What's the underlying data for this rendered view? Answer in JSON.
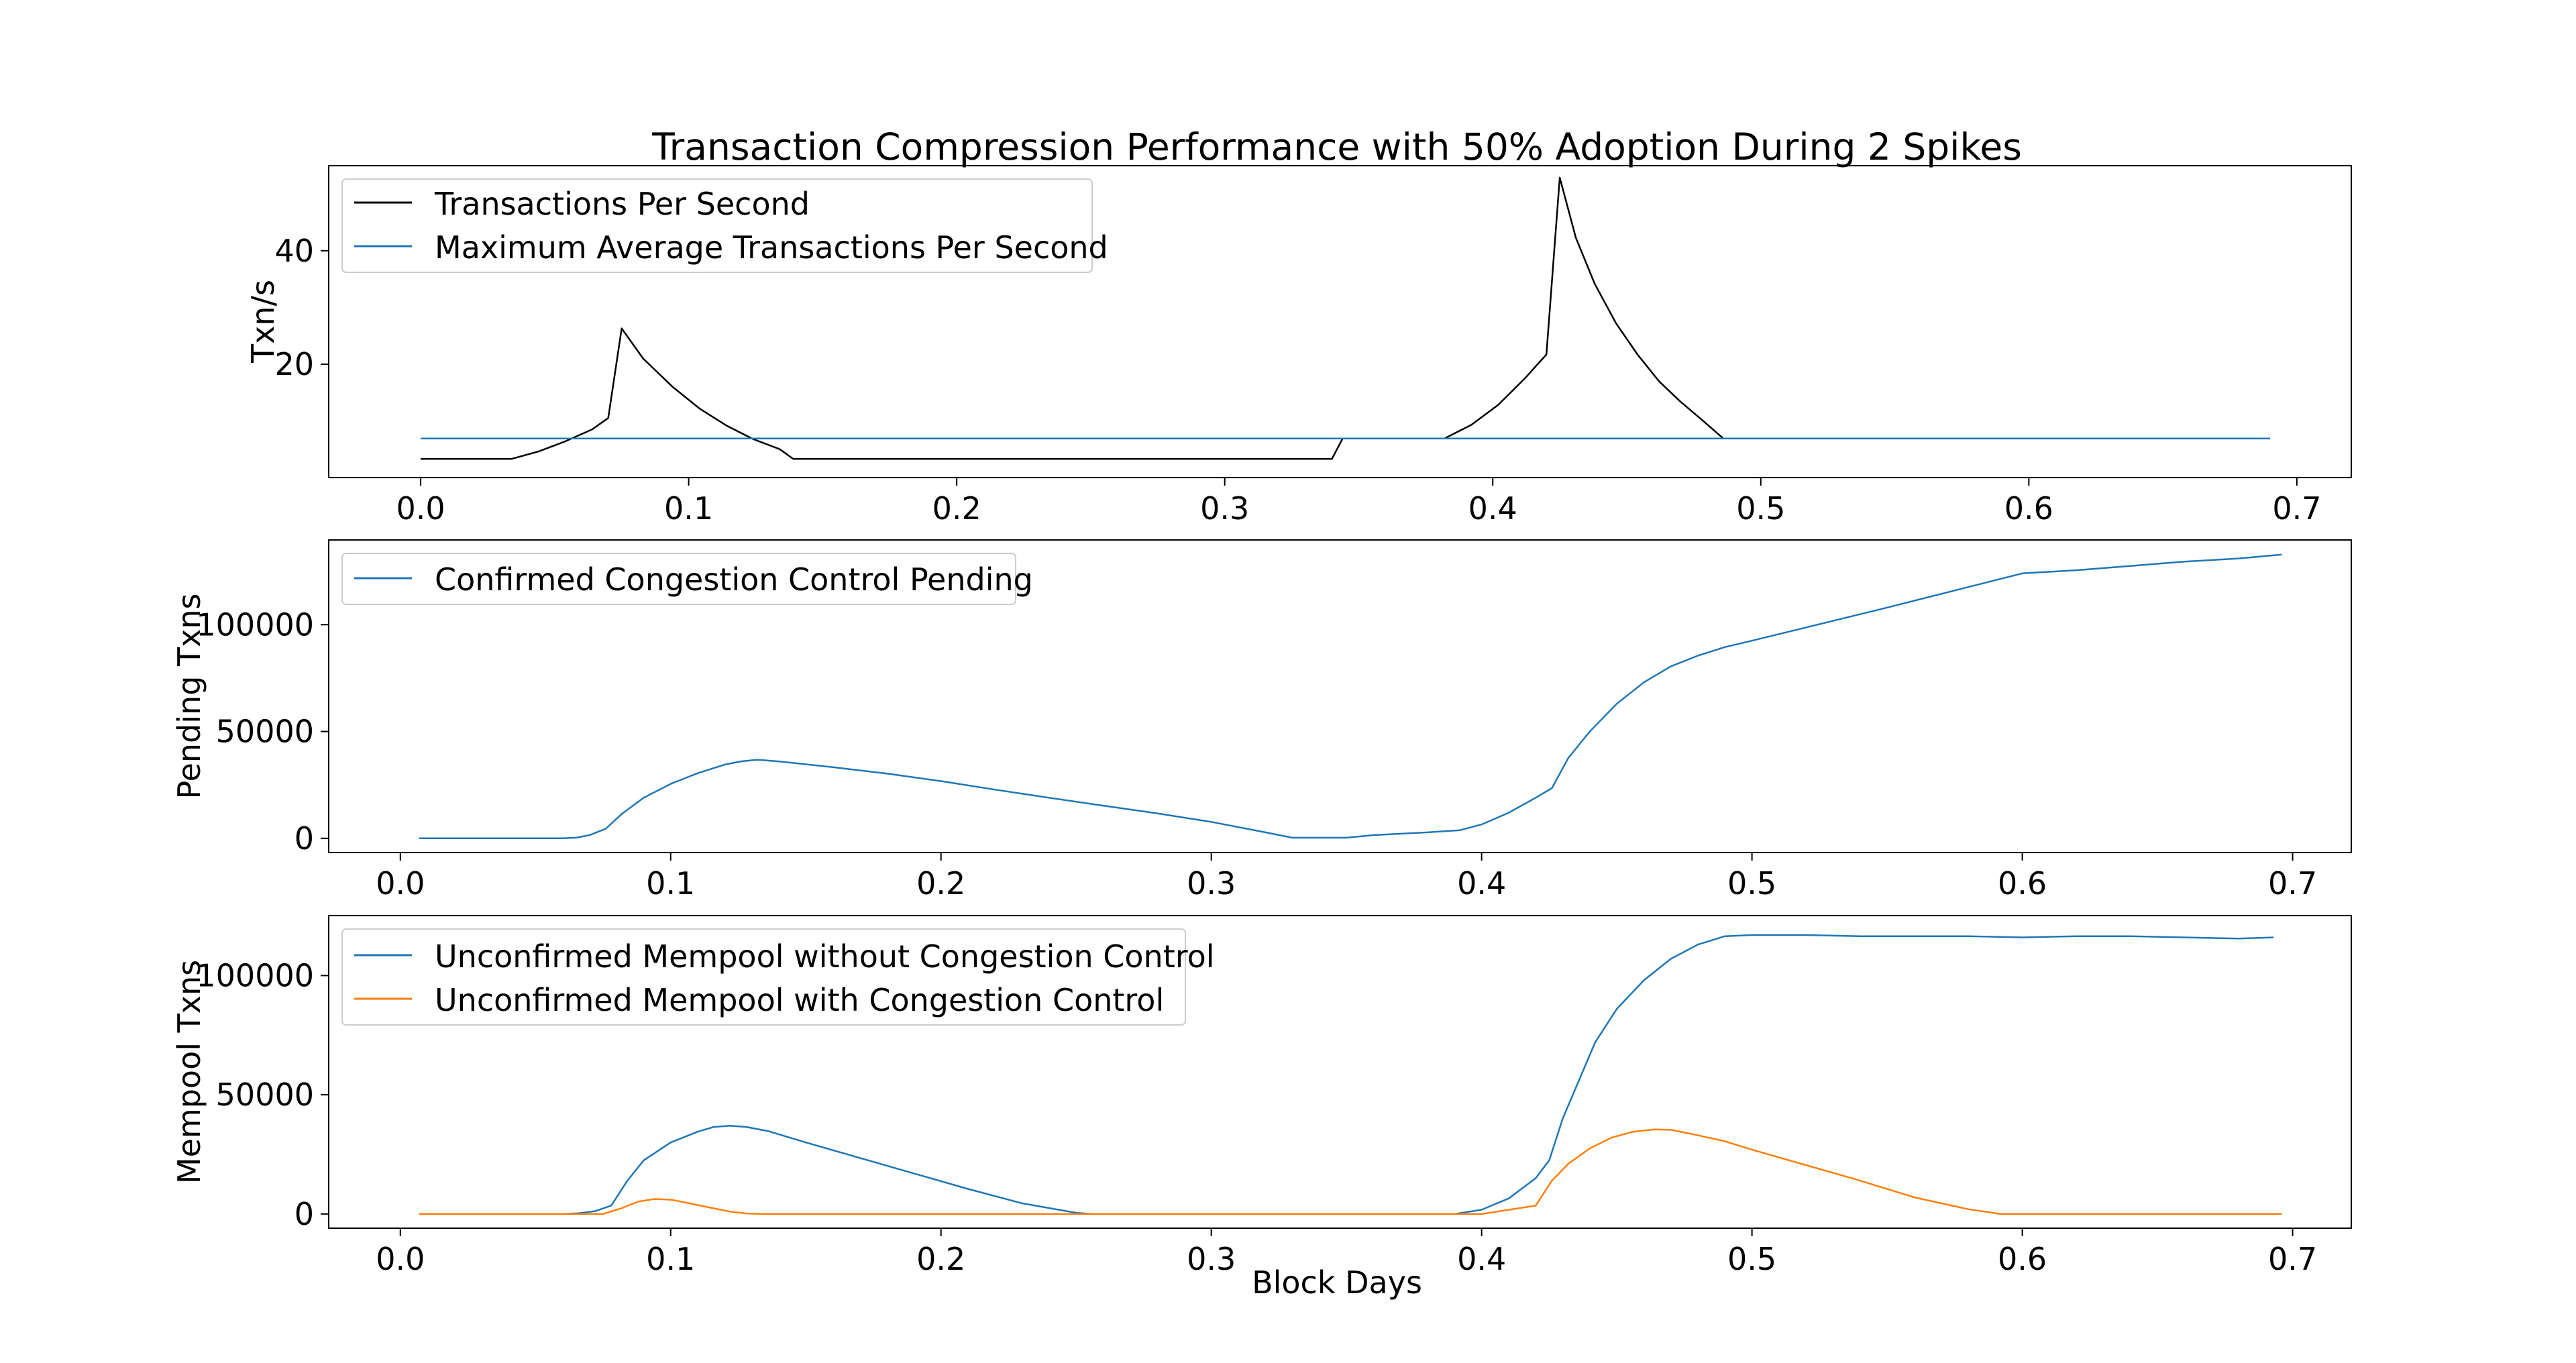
{
  "chart_data": [
    {
      "type": "line",
      "title": "Transaction Compression Performance with 50% Adoption During 2 Spikes",
      "xlabel": "",
      "ylabel": "Txn/s",
      "xlim": [
        -0.0343,
        0.7203
      ],
      "ylim": [
        0,
        55
      ],
      "xticks": [
        "0.0",
        "0.1",
        "0.2",
        "0.3",
        "0.4",
        "0.5",
        "0.6",
        "0.7"
      ],
      "xtick_values": [
        0.0,
        0.1,
        0.2,
        0.3,
        0.4,
        0.5,
        0.6,
        0.7
      ],
      "yticks": [
        "20",
        "40"
      ],
      "ytick_values": [
        20,
        40
      ],
      "grid": false,
      "legend_position": "upper-left",
      "series": [
        {
          "name": "Transactions Per Second",
          "color": "#000000",
          "x": [
            0.0,
            0.034,
            0.044,
            0.054,
            0.064,
            0.07,
            0.075,
            0.083,
            0.094,
            0.104,
            0.114,
            0.124,
            0.134,
            0.139,
            0.34,
            0.344,
            0.382,
            0.392,
            0.402,
            0.412,
            0.42,
            0.425,
            0.431,
            0.438,
            0.446,
            0.454,
            0.462,
            0.47,
            0.478,
            0.486,
            0.69
          ],
          "values": [
            3.3,
            3.3,
            4.6,
            6.4,
            8.5,
            10.5,
            26.3,
            21.0,
            16.0,
            12.2,
            9.2,
            6.8,
            5.0,
            3.3,
            3.3,
            6.9,
            6.9,
            9.3,
            12.8,
            17.5,
            21.7,
            52.9,
            42.3,
            34.2,
            27.2,
            21.7,
            17.0,
            13.4,
            10.2,
            6.9,
            6.9
          ]
        },
        {
          "name": "Maximum Average Transactions Per Second",
          "color": "#1f77b4",
          "x": [
            0.0,
            0.69
          ],
          "values": [
            6.9,
            6.9
          ]
        }
      ]
    },
    {
      "type": "line",
      "title": "",
      "xlabel": "",
      "ylabel": "Pending Txns",
      "xlim": [
        -0.0265,
        0.7217
      ],
      "ylim": [
        -6650,
        139650
      ],
      "xticks": [
        "0.0",
        "0.1",
        "0.2",
        "0.3",
        "0.4",
        "0.5",
        "0.6",
        "0.7"
      ],
      "xtick_values": [
        0.0,
        0.1,
        0.2,
        0.3,
        0.4,
        0.5,
        0.6,
        0.7
      ],
      "yticks": [
        "0",
        "50000",
        "100000"
      ],
      "ytick_values": [
        0,
        50000,
        100000
      ],
      "grid": false,
      "legend_position": "upper-left",
      "series": [
        {
          "name": "Confirmed Congestion Control Pending",
          "color": "#1f77b4",
          "x": [
            0.007,
            0.06,
            0.065,
            0.07,
            0.076,
            0.082,
            0.09,
            0.1,
            0.11,
            0.12,
            0.126,
            0.132,
            0.14,
            0.16,
            0.18,
            0.2,
            0.22,
            0.24,
            0.26,
            0.28,
            0.3,
            0.32,
            0.33,
            0.35,
            0.36,
            0.38,
            0.392,
            0.4,
            0.41,
            0.42,
            0.426,
            0.432,
            0.44,
            0.45,
            0.46,
            0.47,
            0.48,
            0.49,
            0.5,
            0.55,
            0.6,
            0.62,
            0.64,
            0.66,
            0.68,
            0.696
          ],
          "values": [
            0,
            0,
            300,
            1500,
            4500,
            11500,
            19000,
            25500,
            30500,
            34500,
            36000,
            36800,
            36000,
            33300,
            30300,
            26800,
            22800,
            19000,
            15300,
            11700,
            7700,
            2800,
            300,
            300,
            1500,
            2800,
            3800,
            6500,
            12000,
            19000,
            23500,
            37500,
            50000,
            63000,
            73000,
            80500,
            85500,
            89500,
            92500,
            108000,
            124000,
            125500,
            127500,
            129500,
            131000,
            132800
          ]
        }
      ]
    },
    {
      "type": "line",
      "title": "",
      "xlabel": "Block Days",
      "ylabel": "Mempool Txns",
      "xlim": [
        -0.0265,
        0.7217
      ],
      "ylim": [
        -5950,
        125150
      ],
      "xticks": [
        "0.0",
        "0.1",
        "0.2",
        "0.3",
        "0.4",
        "0.5",
        "0.6",
        "0.7"
      ],
      "xtick_values": [
        0.0,
        0.1,
        0.2,
        0.3,
        0.4,
        0.5,
        0.6,
        0.7
      ],
      "yticks": [
        "0",
        "50000",
        "100000"
      ],
      "ytick_values": [
        0,
        50000,
        100000
      ],
      "grid": false,
      "legend_position": "upper-left",
      "series": [
        {
          "name": "Unconfirmed Mempool without Congestion Control",
          "color": "#1f77b4",
          "x": [
            0.007,
            0.06,
            0.066,
            0.072,
            0.078,
            0.084,
            0.09,
            0.1,
            0.11,
            0.116,
            0.122,
            0.128,
            0.136,
            0.15,
            0.17,
            0.19,
            0.21,
            0.23,
            0.25,
            0.256,
            0.262,
            0.3,
            0.35,
            0.39,
            0.4,
            0.41,
            0.42,
            0.425,
            0.43,
            0.436,
            0.442,
            0.45,
            0.46,
            0.47,
            0.48,
            0.49,
            0.5,
            0.52,
            0.54,
            0.56,
            0.58,
            0.6,
            0.62,
            0.64,
            0.66,
            0.68,
            0.693
          ],
          "values": [
            0,
            0,
            300,
            1200,
            3500,
            14000,
            22500,
            30000,
            34500,
            36500,
            37000,
            36500,
            34800,
            30000,
            23500,
            17000,
            10500,
            4500,
            500,
            0,
            0,
            0,
            0,
            0,
            1800,
            6500,
            15000,
            22500,
            40000,
            56000,
            72000,
            86000,
            98000,
            107000,
            113000,
            116500,
            117000,
            117000,
            116500,
            116500,
            116500,
            116000,
            116500,
            116500,
            116000,
            115500,
            116000
          ]
        },
        {
          "name": "Unconfirmed Mempool with Congestion Control",
          "color": "#ff7f0e",
          "x": [
            0.007,
            0.075,
            0.082,
            0.088,
            0.094,
            0.1,
            0.106,
            0.114,
            0.122,
            0.128,
            0.134,
            0.3,
            0.4,
            0.42,
            0.426,
            0.432,
            0.44,
            0.448,
            0.456,
            0.464,
            0.47,
            0.478,
            0.49,
            0.5,
            0.52,
            0.54,
            0.56,
            0.58,
            0.592,
            0.6,
            0.696
          ],
          "values": [
            0,
            0,
            2500,
            5200,
            6300,
            6000,
            4700,
            2800,
            1000,
            200,
            0,
            0,
            0,
            3500,
            14000,
            21000,
            27500,
            32000,
            34500,
            35500,
            35300,
            33500,
            30500,
            27000,
            20500,
            14000,
            7000,
            2000,
            0,
            0,
            0
          ]
        }
      ]
    }
  ]
}
